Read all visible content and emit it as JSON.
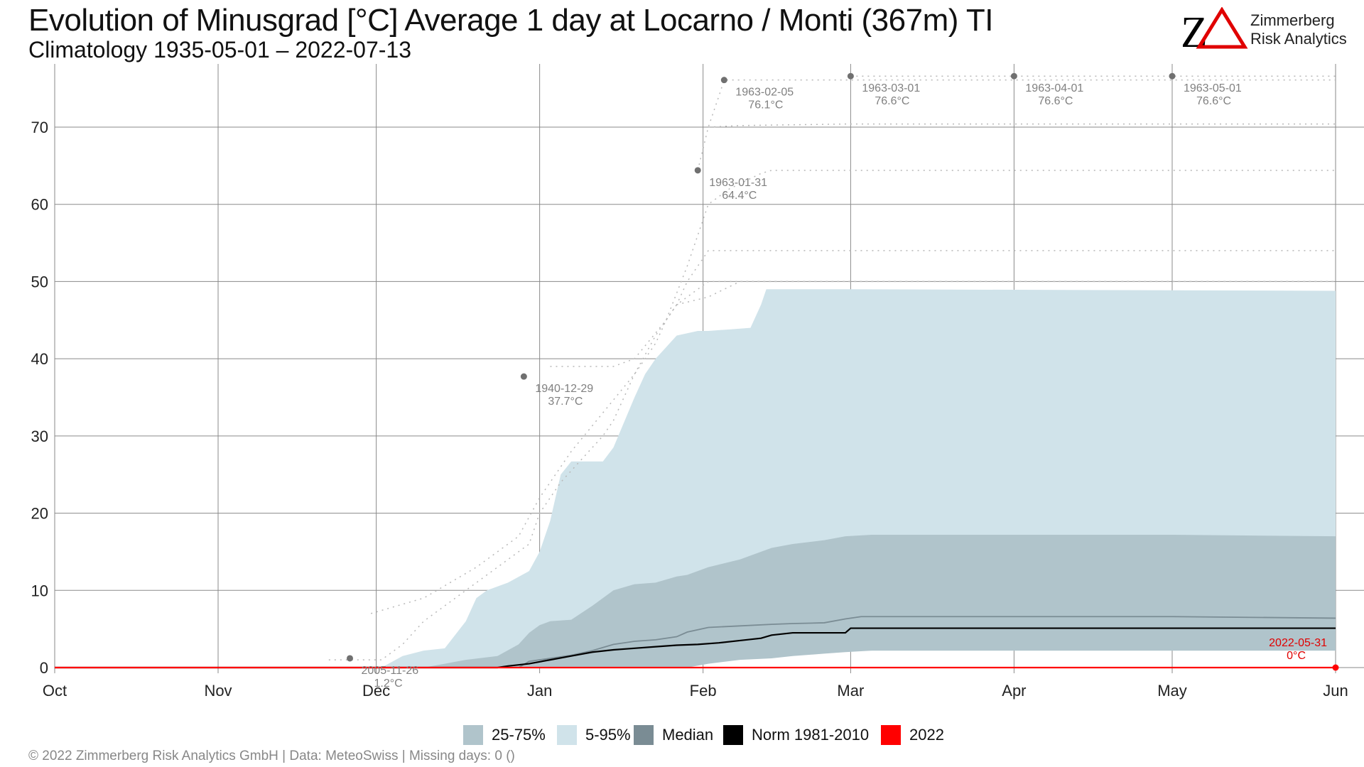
{
  "header": {
    "title": "Evolution of Minusgrad [°C] Average 1 day at Locarno / Monti (367m) TI",
    "subtitle": "Climatology 1935-05-01 – 2022-07-13"
  },
  "logo": {
    "line1": "Zimmerberg",
    "line2": "Risk Analytics",
    "accent_color": "#e00000"
  },
  "footer": {
    "text": "©  2022 Zimmerberg Risk Analytics GmbH | Data: MeteoSwiss | Missing days: 0 ()"
  },
  "colors": {
    "band_5_95": "#d0e3ea",
    "band_25_75": "#b0c4cb",
    "median": "#7a8c94",
    "norm": "#000000",
    "year": "#ff0000",
    "record": "#808080"
  },
  "chart_data": {
    "type": "area",
    "x_unit": "day of season starting Oct 1",
    "xlim": [
      0,
      243
    ],
    "ylim": [
      0,
      78
    ],
    "y_ticks": [
      0,
      10,
      20,
      30,
      40,
      50,
      60,
      70
    ],
    "x_ticks": [
      {
        "day": 0,
        "label": "Oct"
      },
      {
        "day": 31,
        "label": "Nov"
      },
      {
        "day": 61,
        "label": "Dec"
      },
      {
        "day": 92,
        "label": "Jan"
      },
      {
        "day": 123,
        "label": "Feb"
      },
      {
        "day": 151,
        "label": "Mar"
      },
      {
        "day": 182,
        "label": "Apr"
      },
      {
        "day": 212,
        "label": "May"
      },
      {
        "day": 243,
        "label": "Jun"
      }
    ],
    "grid": true,
    "legend_position": "bottom",
    "series": [
      {
        "name": "5-95%",
        "kind": "band",
        "days": [
          0,
          62,
          66,
          70,
          74,
          78,
          80,
          82,
          86,
          90,
          92,
          94,
          96,
          98,
          100,
          104,
          106,
          110,
          112,
          114,
          116,
          118,
          120,
          122,
          124,
          126,
          128,
          132,
          134,
          135,
          136,
          140,
          150,
          243
        ],
        "upper": [
          0,
          0,
          1.5,
          2.2,
          2.5,
          6,
          9,
          10,
          11,
          12.5,
          15,
          19,
          25,
          26.7,
          26.7,
          26.7,
          28.5,
          35,
          38,
          40,
          41.5,
          43,
          43.3,
          43.6,
          43.6,
          43.7,
          43.8,
          44,
          47,
          49,
          49,
          49,
          49,
          48.8
        ],
        "lower": [
          0,
          0,
          0,
          0,
          0,
          0,
          0,
          0,
          0,
          0,
          0,
          0,
          0,
          0,
          0,
          0,
          0,
          0,
          0,
          0,
          0,
          0.2,
          0.5,
          0.8,
          1,
          1.1,
          1.2,
          1.3,
          1.5,
          1.5,
          1.6,
          1.7,
          2.2,
          2.2
        ]
      },
      {
        "name": "25-75%",
        "kind": "band",
        "days": [
          0,
          70,
          74,
          78,
          84,
          88,
          90,
          92,
          94,
          98,
          102,
          106,
          110,
          114,
          118,
          120,
          124,
          130,
          136,
          140,
          146,
          150,
          155,
          212,
          243
        ],
        "upper": [
          0,
          0,
          0.5,
          1,
          1.5,
          3,
          4.5,
          5.5,
          6,
          6.2,
          8,
          10,
          10.8,
          11,
          11.8,
          12,
          13,
          14,
          15.5,
          16,
          16.5,
          17,
          17.2,
          17.2,
          17
        ],
        "lower": [
          0,
          0,
          0,
          0,
          0,
          0,
          0,
          0,
          0,
          0,
          0,
          0,
          0,
          0,
          0,
          0,
          0.5,
          1,
          1.2,
          1.5,
          1.8,
          2,
          2.2,
          2.2,
          2.2
        ]
      },
      {
        "name": "Median",
        "kind": "line",
        "days": [
          0,
          88,
          90,
          94,
          98,
          102,
          106,
          110,
          114,
          118,
          120,
          124,
          130,
          136,
          140,
          146,
          150,
          153,
          212,
          243
        ],
        "values": [
          0,
          0,
          0.8,
          1.2,
          1.6,
          2.2,
          3,
          3.4,
          3.6,
          4,
          4.6,
          5.2,
          5.4,
          5.6,
          5.7,
          5.8,
          6.3,
          6.6,
          6.6,
          6.4
        ]
      },
      {
        "name": "Norm 1981-2010",
        "kind": "line",
        "days": [
          0,
          84,
          86,
          90,
          94,
          98,
          102,
          106,
          110,
          114,
          118,
          122,
          126,
          130,
          134,
          136,
          140,
          146,
          150,
          151,
          243
        ],
        "values": [
          0,
          0,
          0.2,
          0.5,
          1,
          1.5,
          2,
          2.3,
          2.5,
          2.7,
          2.9,
          3,
          3.2,
          3.5,
          3.8,
          4.2,
          4.5,
          4.5,
          4.5,
          5.1,
          5.1
        ]
      },
      {
        "name": "2022",
        "kind": "line",
        "days": [
          0,
          243
        ],
        "values": [
          0,
          0
        ]
      }
    ],
    "records": [
      {
        "day": 56,
        "value": 1.2,
        "date": "2005-11-26",
        "label": "1.2°C",
        "color": "#808080"
      },
      {
        "day": 89,
        "value": 37.7,
        "date": "1940-12-29",
        "label": "37.7°C",
        "color": "#808080"
      },
      {
        "day": 122,
        "value": 64.4,
        "date": "1963-01-31",
        "label": "64.4°C",
        "color": "#808080"
      },
      {
        "day": 127,
        "value": 76.1,
        "date": "1963-02-05",
        "label": "76.1°C",
        "color": "#808080"
      },
      {
        "day": 151,
        "value": 76.6,
        "date": "1963-03-01",
        "label": "76.6°C",
        "color": "#808080"
      },
      {
        "day": 182,
        "value": 76.6,
        "date": "1963-04-01",
        "label": "76.6°C",
        "color": "#808080"
      },
      {
        "day": 212,
        "value": 76.6,
        "date": "1963-05-01",
        "label": "76.6°C",
        "color": "#808080"
      },
      {
        "day": 243,
        "value": 0,
        "date": "2022-05-31",
        "label": "0°C",
        "color": "#e00000"
      }
    ],
    "record_trails": [
      {
        "days": [
          52,
          62,
          66,
          70,
          74,
          78,
          82,
          86,
          90,
          92,
          96,
          100,
          104,
          106,
          110,
          114,
          116,
          118,
          120,
          122,
          124,
          126,
          130,
          136,
          243
        ],
        "values": [
          1,
          1,
          3,
          6,
          8,
          10,
          12,
          14,
          16,
          20,
          24,
          27,
          30,
          32,
          38,
          43,
          45,
          47,
          48,
          49,
          50,
          50,
          50,
          50,
          50
        ]
      },
      {
        "days": [
          60,
          70,
          80,
          88,
          92,
          98,
          104,
          110,
          114,
          116,
          118,
          120,
          122,
          124,
          130,
          136,
          140,
          243
        ],
        "values": [
          7,
          9,
          13,
          17,
          22,
          28,
          33,
          38,
          42,
          45,
          47,
          50,
          52,
          54,
          54,
          54,
          54,
          54
        ]
      },
      {
        "days": [
          94,
          100,
          106,
          110,
          116,
          120,
          122,
          124,
          128,
          134,
          136,
          138,
          243
        ],
        "values": [
          39,
          39,
          39,
          40,
          45,
          52,
          56,
          60,
          62,
          64,
          64.4,
          64.4,
          64.4
        ]
      },
      {
        "days": [
          122,
          124,
          125,
          126,
          127,
          243
        ],
        "values": [
          64.4,
          70,
          72,
          74,
          76.1,
          76.1
        ]
      },
      {
        "days": [
          151,
          243
        ],
        "values": [
          76.6,
          76.6
        ]
      },
      {
        "days": [
          124,
          130,
          140,
          150,
          243
        ],
        "values": [
          70,
          70.2,
          70.3,
          70.4,
          70.4
        ]
      },
      {
        "days": [
          118,
          124,
          130,
          243
        ],
        "values": [
          47,
          48,
          50,
          50
        ]
      }
    ]
  },
  "legend": {
    "items": [
      {
        "label": "25-75%",
        "color": "#b0c4cb"
      },
      {
        "label": "5-95%",
        "color": "#d0e3ea"
      },
      {
        "label": "Median",
        "color": "#7a8c94"
      },
      {
        "label": "Norm 1981-2010",
        "color": "#000000"
      },
      {
        "label": "2022",
        "color": "#ff0000"
      }
    ]
  }
}
